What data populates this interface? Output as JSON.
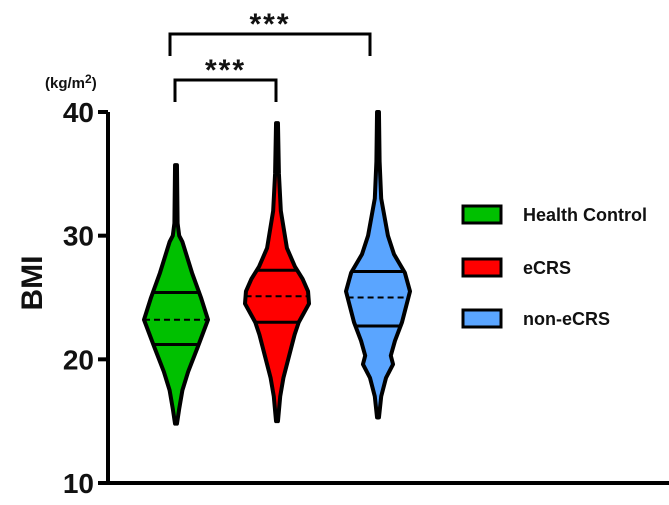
{
  "chart_data": {
    "type": "violin",
    "ylabel": "BMI",
    "yunit_prefix": "(kg/m",
    "yunit_sup": "2",
    "yunit_suffix": ")",
    "ylim": [
      10,
      40
    ],
    "yticks": [
      "10",
      "20",
      "30",
      "40"
    ],
    "grid": false,
    "legend_position": "right",
    "series": [
      {
        "name": "Health Control",
        "color": "#00c000",
        "min": 14.8,
        "max": 35.7,
        "q1": 21.2,
        "median": 23.2,
        "q3": 25.4,
        "density": [
          [
            14.8,
            0.03
          ],
          [
            16,
            0.1
          ],
          [
            17.5,
            0.2
          ],
          [
            19,
            0.38
          ],
          [
            21,
            0.68
          ],
          [
            23.2,
            1
          ],
          [
            25,
            0.78
          ],
          [
            27,
            0.5
          ],
          [
            29.5,
            0.2
          ],
          [
            30,
            0.1
          ],
          [
            31,
            0.05
          ],
          [
            35.7,
            0.03
          ]
        ]
      },
      {
        "name": "eCRS",
        "color": "#ff0000",
        "min": 15.0,
        "max": 39.1,
        "q1": 23.0,
        "median": 25.1,
        "q3": 27.2,
        "density": [
          [
            15,
            0.03
          ],
          [
            17,
            0.1
          ],
          [
            18.5,
            0.2
          ],
          [
            20,
            0.35
          ],
          [
            22,
            0.55
          ],
          [
            23,
            0.68
          ],
          [
            24.5,
            1
          ],
          [
            25.5,
            0.97
          ],
          [
            26.5,
            0.8
          ],
          [
            27.5,
            0.56
          ],
          [
            29,
            0.31
          ],
          [
            32,
            0.12
          ],
          [
            35,
            0.06
          ],
          [
            39.1,
            0.03
          ]
        ]
      },
      {
        "name": "non-eCRS",
        "color": "#5aa5ff",
        "min": 15.3,
        "max": 40.0,
        "q1": 22.7,
        "median": 25.0,
        "q3": 27.1,
        "density": [
          [
            15.3,
            0.03
          ],
          [
            17,
            0.1
          ],
          [
            18.5,
            0.25
          ],
          [
            19.6,
            0.47
          ],
          [
            20.3,
            0.4
          ],
          [
            21.5,
            0.53
          ],
          [
            23,
            0.75
          ],
          [
            25.5,
            1
          ],
          [
            27,
            0.84
          ],
          [
            28.5,
            0.5
          ],
          [
            30,
            0.31
          ],
          [
            33,
            0.1
          ],
          [
            36,
            0.05
          ],
          [
            40,
            0.03
          ]
        ]
      }
    ],
    "comparisons": [
      {
        "groups": [
          "Health Control",
          "eCRS"
        ],
        "label": "***"
      },
      {
        "groups": [
          "Health Control",
          "non-eCRS"
        ],
        "label": "***"
      }
    ]
  }
}
